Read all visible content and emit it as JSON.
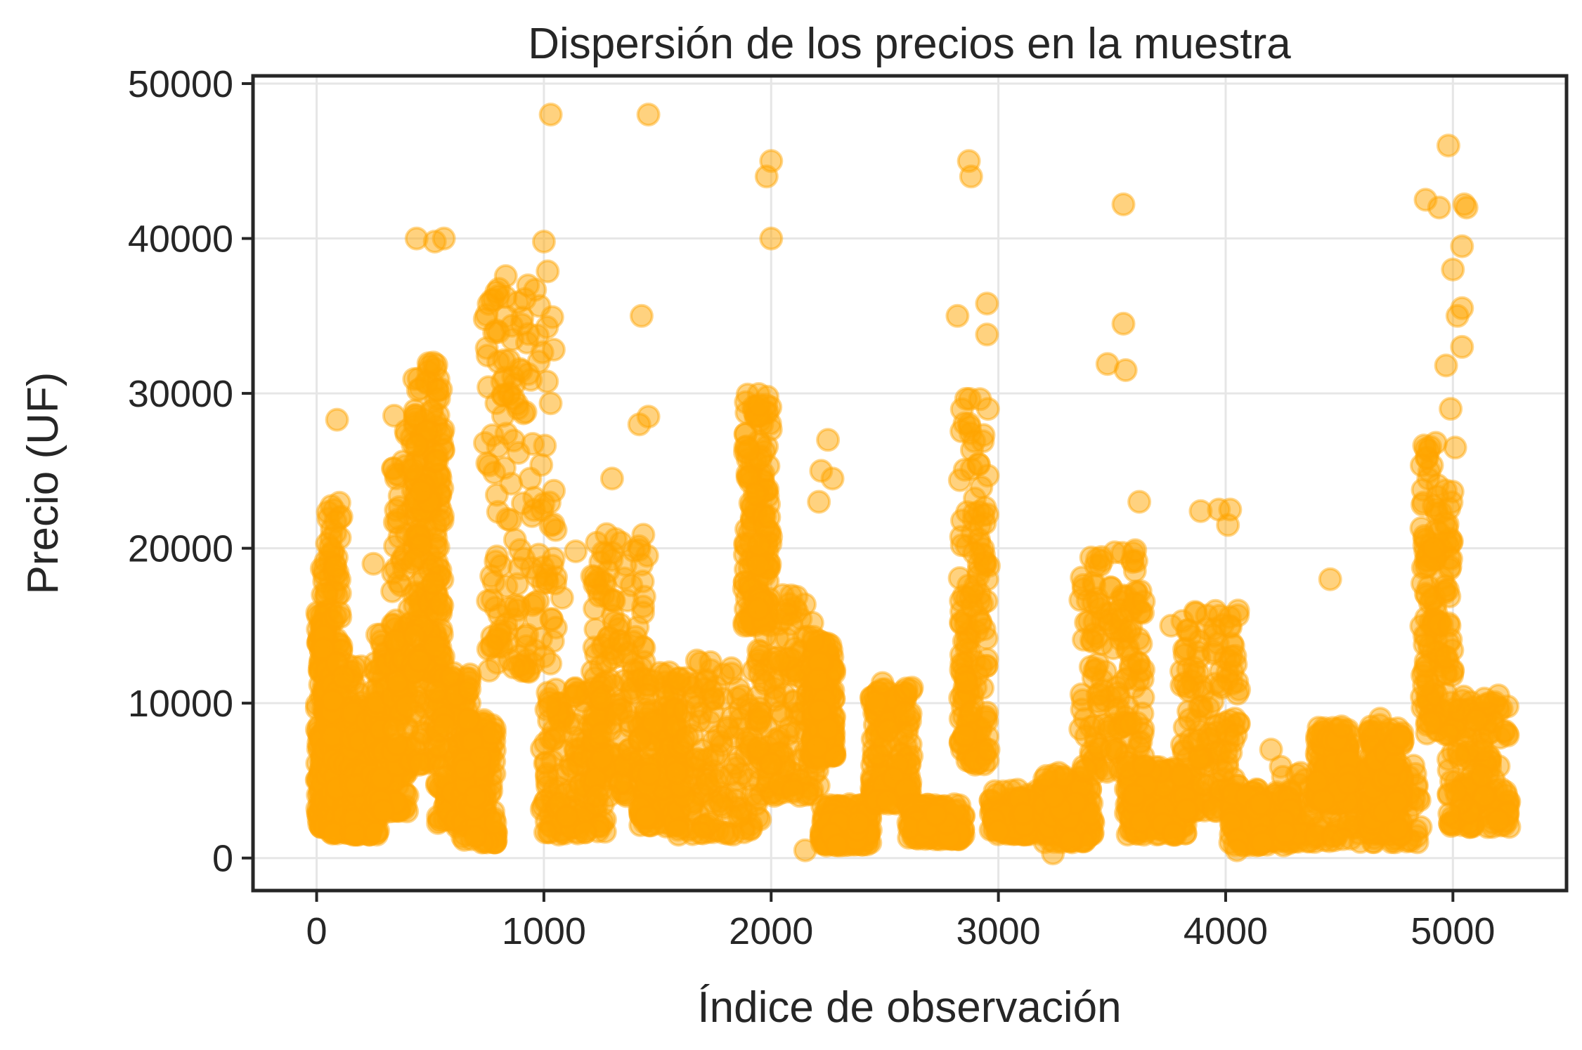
{
  "chart_data": {
    "type": "scatter",
    "title": "Dispersión de los precios en la muestra",
    "xlabel": "Índice de observación",
    "ylabel": "Precio (UF)",
    "xlim": [
      -280,
      5500
    ],
    "ylim": [
      -2100,
      50500
    ],
    "xticks": [
      0,
      1000,
      2000,
      3000,
      4000,
      5000
    ],
    "yticks": [
      0,
      10000,
      20000,
      30000,
      40000,
      50000
    ],
    "xtick_labels": [
      "0",
      "1000",
      "2000",
      "3000",
      "4000",
      "5000"
    ],
    "ytick_labels": [
      "0",
      "10000",
      "20000",
      "30000",
      "40000",
      "50000"
    ],
    "grid": true,
    "marker_color": "#FFA500",
    "marker_opacity": 0.5,
    "n_points": 5260,
    "clusters": [
      {
        "x": [
          0,
          60
        ],
        "y": [
          2000,
          16000
        ]
      },
      {
        "x": [
          20,
          110
        ],
        "y": [
          2000,
          23000
        ]
      },
      {
        "x": [
          60,
          200
        ],
        "y": [
          1500,
          13000
        ]
      },
      {
        "x": [
          150,
          280
        ],
        "y": [
          1500,
          10000
        ]
      },
      {
        "x": [
          240,
          400
        ],
        "y": [
          3000,
          14500
        ]
      },
      {
        "x": [
          330,
          560
        ],
        "y": [
          6000,
          29000
        ]
      },
      {
        "x": [
          420,
          560
        ],
        "y": [
          12000,
          32000
        ]
      },
      {
        "x": [
          520,
          680
        ],
        "y": [
          2000,
          12000
        ]
      },
      {
        "x": [
          640,
          790
        ],
        "y": [
          1000,
          9000
        ]
      },
      {
        "x": [
          740,
          1060
        ],
        "y": [
          12000,
          38000
        ]
      },
      {
        "x": [
          990,
          1270
        ],
        "y": [
          1500,
          11000
        ]
      },
      {
        "x": [
          1210,
          1460
        ],
        "y": [
          4000,
          21000
        ]
      },
      {
        "x": [
          1420,
          1600
        ],
        "y": [
          2000,
          12000
        ]
      },
      {
        "x": [
          1580,
          1960
        ],
        "y": [
          1500,
          13000
        ]
      },
      {
        "x": [
          1880,
          2000
        ],
        "y": [
          15000,
          30000
        ]
      },
      {
        "x": [
          1940,
          2220
        ],
        "y": [
          4000,
          17000
        ]
      },
      {
        "x": [
          2180,
          2280
        ],
        "y": [
          6500,
          14000
        ]
      },
      {
        "x": [
          2220,
          2440
        ],
        "y": [
          800,
          3500
        ]
      },
      {
        "x": [
          2440,
          2620
        ],
        "y": [
          3500,
          11000
        ]
      },
      {
        "x": [
          2600,
          2850
        ],
        "y": [
          1200,
          3500
        ]
      },
      {
        "x": [
          2830,
          2960
        ],
        "y": [
          6000,
          30000
        ]
      },
      {
        "x": [
          2960,
          3250
        ],
        "y": [
          1500,
          4500
        ]
      },
      {
        "x": [
          3200,
          3420
        ],
        "y": [
          1000,
          5500
        ]
      },
      {
        "x": [
          3360,
          3640
        ],
        "y": [
          5500,
          20000
        ]
      },
      {
        "x": [
          3560,
          3850
        ],
        "y": [
          1500,
          6000
        ]
      },
      {
        "x": [
          3800,
          4060
        ],
        "y": [
          3000,
          16000
        ]
      },
      {
        "x": [
          4020,
          4310
        ],
        "y": [
          800,
          4500
        ]
      },
      {
        "x": [
          4240,
          4860
        ],
        "y": [
          1000,
          6000
        ]
      },
      {
        "x": [
          4400,
          4560
        ],
        "y": [
          3500,
          8500
        ]
      },
      {
        "x": [
          4630,
          4780
        ],
        "y": [
          1500,
          9000
        ]
      },
      {
        "x": [
          4860,
          5000
        ],
        "y": [
          8000,
          27000
        ]
      },
      {
        "x": [
          4980,
          5250
        ],
        "y": [
          2000,
          10500
        ]
      }
    ],
    "outliers": [
      {
        "x": 1030,
        "y": 48000
      },
      {
        "x": 1460,
        "y": 48000
      },
      {
        "x": 2000,
        "y": 45000
      },
      {
        "x": 1980,
        "y": 44000
      },
      {
        "x": 2870,
        "y": 45000
      },
      {
        "x": 2880,
        "y": 44000
      },
      {
        "x": 4980,
        "y": 46000
      },
      {
        "x": 3550,
        "y": 42200
      },
      {
        "x": 4880,
        "y": 42500
      },
      {
        "x": 4940,
        "y": 42000
      },
      {
        "x": 5050,
        "y": 42200
      },
      {
        "x": 5060,
        "y": 42000
      },
      {
        "x": 5040,
        "y": 39500
      },
      {
        "x": 5000,
        "y": 38000
      },
      {
        "x": 5040,
        "y": 35500
      },
      {
        "x": 5020,
        "y": 35000
      },
      {
        "x": 5040,
        "y": 33000
      },
      {
        "x": 4970,
        "y": 31800
      },
      {
        "x": 4990,
        "y": 29000
      },
      {
        "x": 5010,
        "y": 26500
      },
      {
        "x": 440,
        "y": 40000
      },
      {
        "x": 520,
        "y": 39800
      },
      {
        "x": 560,
        "y": 40000
      },
      {
        "x": 1000,
        "y": 39800
      },
      {
        "x": 2000,
        "y": 40000
      },
      {
        "x": 1430,
        "y": 35000
      },
      {
        "x": 740,
        "y": 34800
      },
      {
        "x": 2820,
        "y": 35000
      },
      {
        "x": 2950,
        "y": 35800
      },
      {
        "x": 2950,
        "y": 33800
      },
      {
        "x": 3550,
        "y": 34500
      },
      {
        "x": 3480,
        "y": 31900
      },
      {
        "x": 3560,
        "y": 31500
      },
      {
        "x": 90,
        "y": 28300
      },
      {
        "x": 2250,
        "y": 27000
      },
      {
        "x": 2220,
        "y": 25000
      },
      {
        "x": 2270,
        "y": 24500
      },
      {
        "x": 2210,
        "y": 23000
      },
      {
        "x": 3620,
        "y": 23000
      },
      {
        "x": 1300,
        "y": 24500
      },
      {
        "x": 1460,
        "y": 28500
      },
      {
        "x": 1420,
        "y": 28000
      },
      {
        "x": 3970,
        "y": 22500
      },
      {
        "x": 4020,
        "y": 22500
      },
      {
        "x": 4010,
        "y": 21500
      },
      {
        "x": 3890,
        "y": 22400
      },
      {
        "x": 4460,
        "y": 18000
      },
      {
        "x": 250,
        "y": 19000
      },
      {
        "x": 1140,
        "y": 19800
      },
      {
        "x": 1080,
        "y": 16800
      },
      {
        "x": 1040,
        "y": 14000
      },
      {
        "x": 3760,
        "y": 15000
      },
      {
        "x": 4680,
        "y": 9000
      },
      {
        "x": 4770,
        "y": 7800
      },
      {
        "x": 4510,
        "y": 8500
      },
      {
        "x": 4200,
        "y": 7000
      },
      {
        "x": 3640,
        "y": 6000
      },
      {
        "x": 2150,
        "y": 500
      },
      {
        "x": 3240,
        "y": 300
      },
      {
        "x": 4050,
        "y": 500
      },
      {
        "x": 2620,
        "y": 11000
      },
      {
        "x": 2490,
        "y": 11300
      },
      {
        "x": 5200,
        "y": 10500
      },
      {
        "x": 5230,
        "y": 8200
      }
    ]
  }
}
